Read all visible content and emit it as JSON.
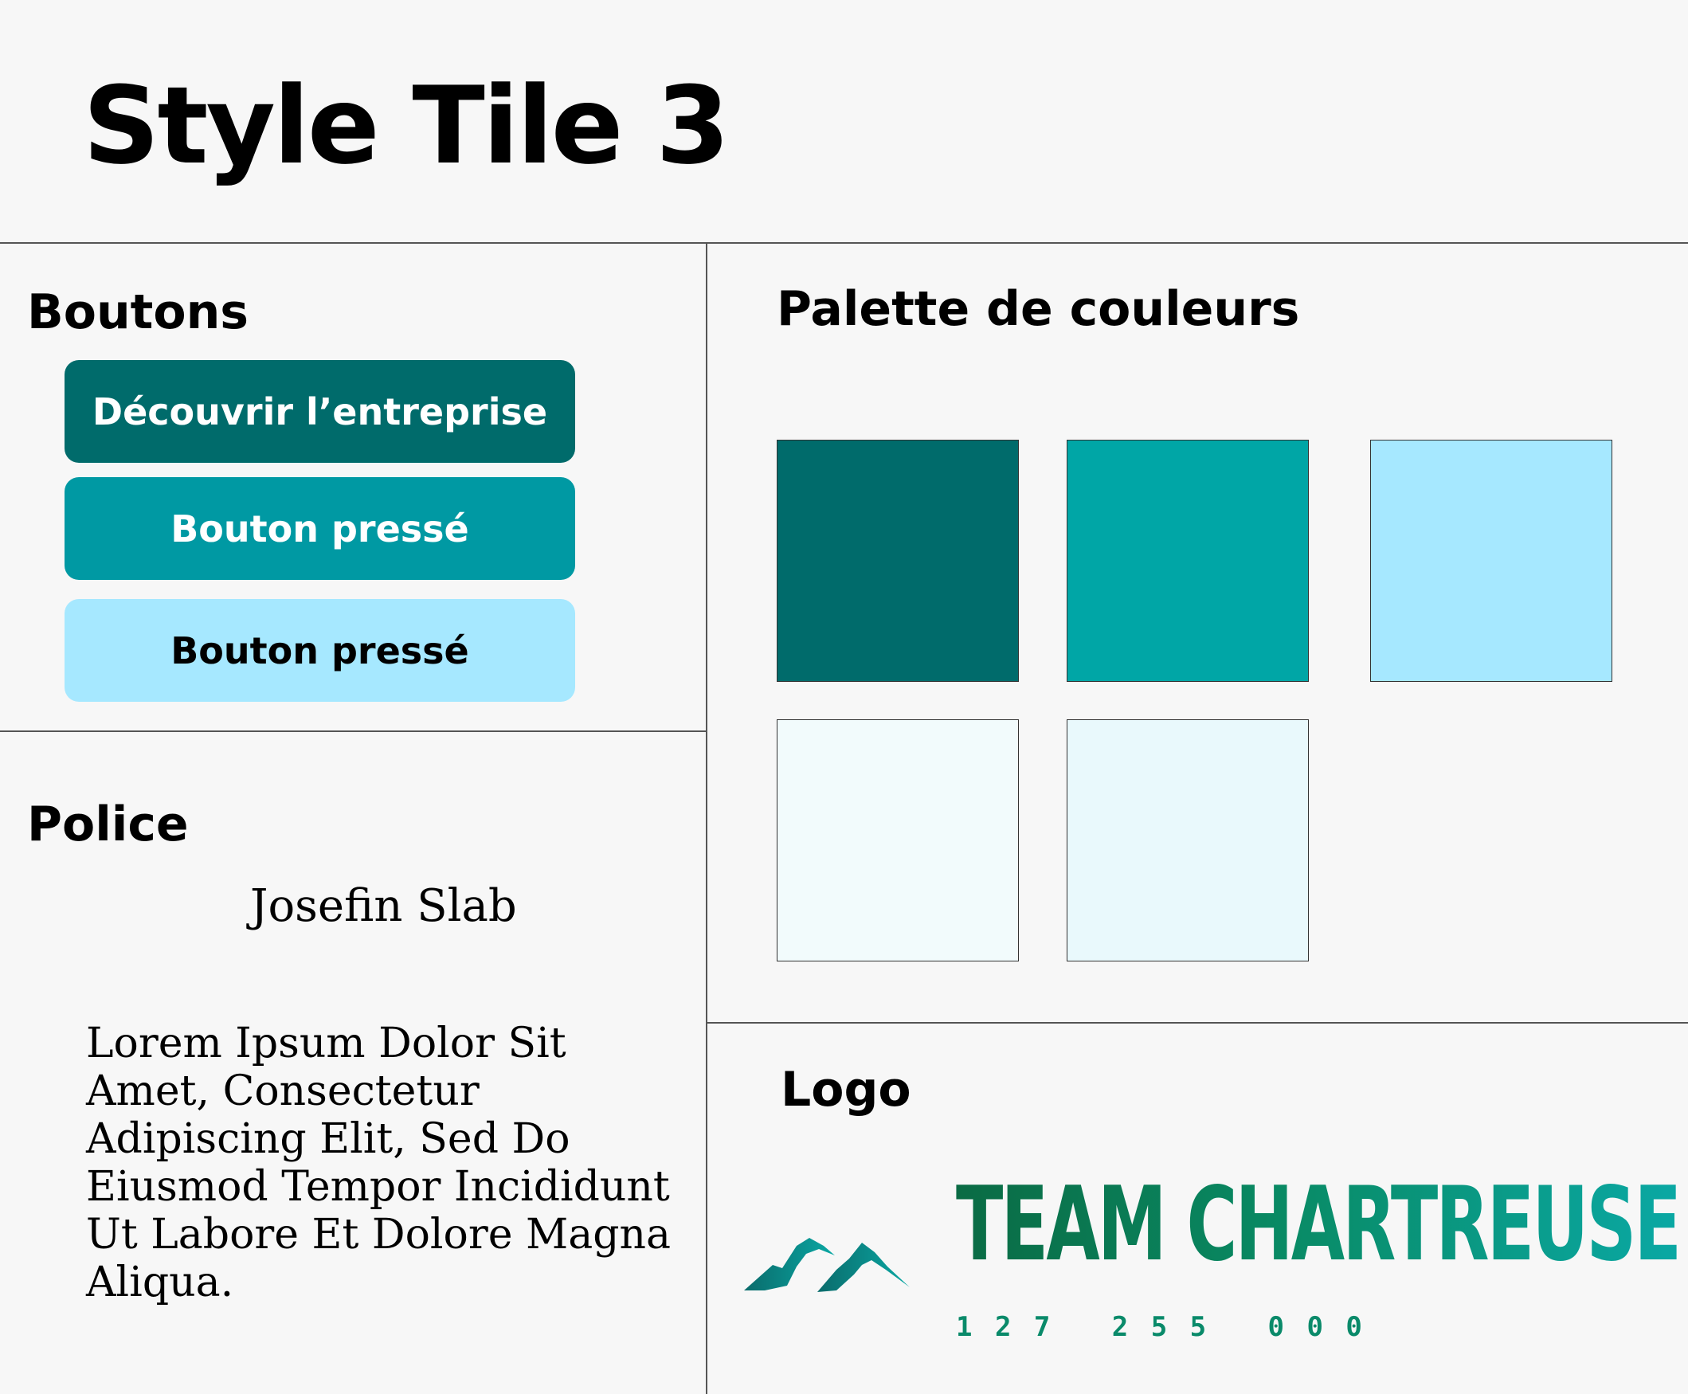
{
  "title": "Style Tile 3",
  "sections": {
    "buttons": {
      "heading": "Boutons",
      "items": [
        {
          "label": "Découvrir l’entreprise",
          "bg": "#006b6b",
          "color": "#ffffff"
        },
        {
          "label": "Bouton pressé",
          "bg": "#0099a3",
          "color": "#ffffff"
        },
        {
          "label": "Bouton pressé",
          "bg": "#a6e8ff",
          "color": "#000000"
        }
      ]
    },
    "font": {
      "heading": "Police",
      "name": "Josefin Slab",
      "sample": "Lorem Ipsum Dolor Sit Amet, Consectetur Adipiscing Elit, Sed Do Eiusmod Tempor Incididunt Ut Labore Et Dolore Magna Aliqua."
    },
    "palette": {
      "heading": "Palette de couleurs",
      "colors": [
        "#006b6b",
        "#00a6a6",
        "#a6e8ff",
        "#f2fbfc",
        "#e9f9fc"
      ]
    },
    "logo": {
      "heading": "Logo",
      "name": "TEAM CHARTREUSE",
      "digits": "1 2 7   2 5 5   0 0 0",
      "icon": "mountain-icon",
      "colors": {
        "start": "#0a6b44",
        "end": "#0aa8a4"
      }
    }
  }
}
